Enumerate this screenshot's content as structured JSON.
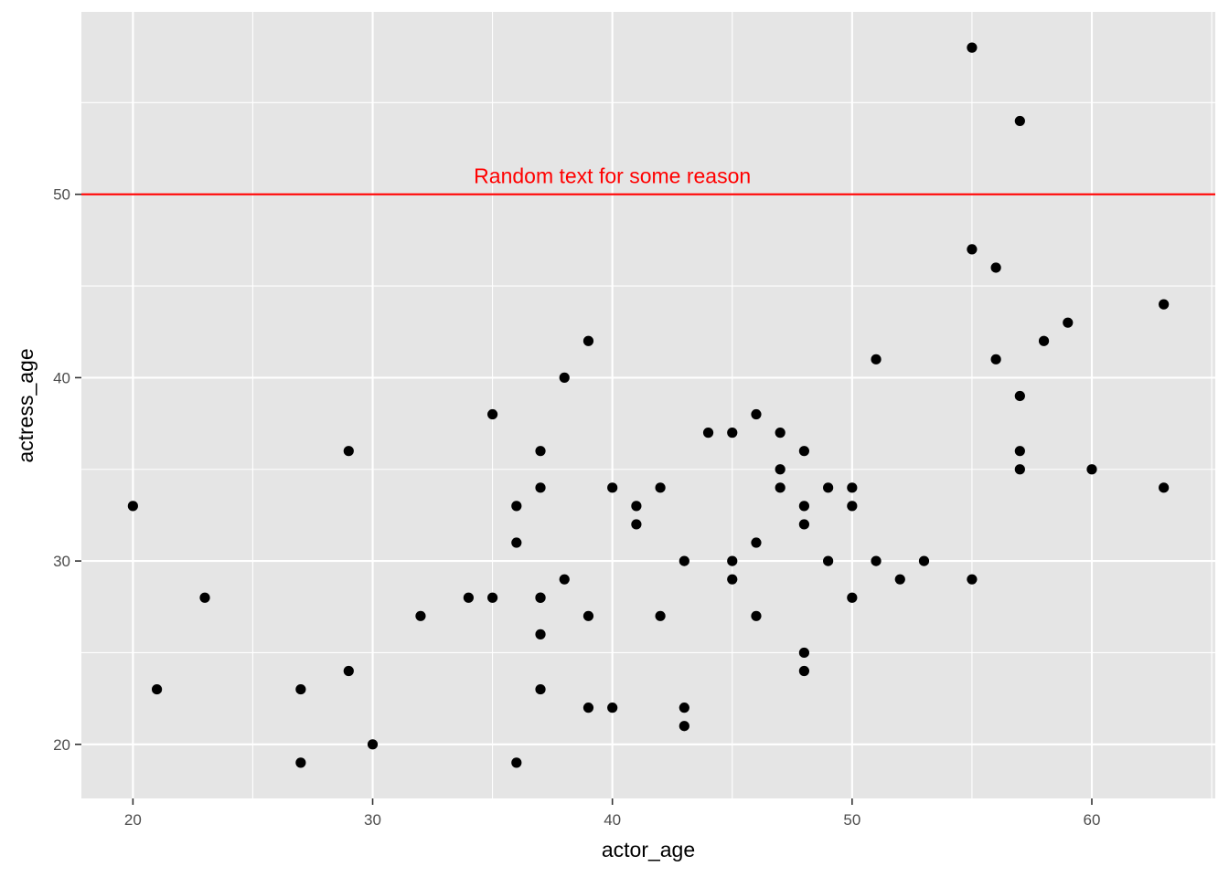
{
  "chart_data": {
    "type": "scatter",
    "title": "",
    "xlabel": "actor_age",
    "ylabel": "actress_age",
    "xlim": [
      17.85,
      65.15
    ],
    "ylim": [
      17.05,
      59.95
    ],
    "x_major_ticks": [
      20,
      30,
      40,
      50,
      60
    ],
    "x_minor_ticks": [
      25,
      35,
      45,
      55,
      65
    ],
    "y_major_ticks": [
      20,
      30,
      40,
      50
    ],
    "y_minor_ticks": [
      25,
      35,
      45,
      55
    ],
    "grid": true,
    "panel_color": "#e5e5e5",
    "point_color": "#000000",
    "hline": {
      "y": 50,
      "color": "#ff0000"
    },
    "annotation": {
      "text": "Random text for some reason",
      "x": 40,
      "y": 51,
      "color": "#ff0000"
    },
    "points": [
      [
        20,
        33
      ],
      [
        21,
        23
      ],
      [
        23,
        28
      ],
      [
        27,
        23
      ],
      [
        27,
        19
      ],
      [
        29,
        36
      ],
      [
        29,
        24
      ],
      [
        30,
        20
      ],
      [
        32,
        27
      ],
      [
        34,
        28
      ],
      [
        35,
        38
      ],
      [
        35,
        28
      ],
      [
        36,
        33
      ],
      [
        36,
        31
      ],
      [
        36,
        19
      ],
      [
        37,
        36
      ],
      [
        37,
        34
      ],
      [
        37,
        28
      ],
      [
        37,
        28
      ],
      [
        37,
        26
      ],
      [
        37,
        23
      ],
      [
        38,
        40
      ],
      [
        38,
        29
      ],
      [
        39,
        42
      ],
      [
        39,
        27
      ],
      [
        39,
        22
      ],
      [
        40,
        34
      ],
      [
        40,
        22
      ],
      [
        41,
        33
      ],
      [
        41,
        32
      ],
      [
        42,
        34
      ],
      [
        42,
        27
      ],
      [
        43,
        30
      ],
      [
        43,
        22
      ],
      [
        43,
        21
      ],
      [
        44,
        37
      ],
      [
        45,
        37
      ],
      [
        45,
        30
      ],
      [
        45,
        29
      ],
      [
        46,
        38
      ],
      [
        46,
        31
      ],
      [
        46,
        27
      ],
      [
        47,
        37
      ],
      [
        47,
        35
      ],
      [
        47,
        34
      ],
      [
        48,
        36
      ],
      [
        48,
        33
      ],
      [
        48,
        32
      ],
      [
        48,
        25
      ],
      [
        48,
        24
      ],
      [
        49,
        34
      ],
      [
        49,
        30
      ],
      [
        50,
        34
      ],
      [
        50,
        33
      ],
      [
        50,
        28
      ],
      [
        51,
        41
      ],
      [
        51,
        30
      ],
      [
        52,
        29
      ],
      [
        53,
        30
      ],
      [
        55,
        58
      ],
      [
        55,
        47
      ],
      [
        55,
        29
      ],
      [
        56,
        46
      ],
      [
        56,
        41
      ],
      [
        57,
        54
      ],
      [
        57,
        39
      ],
      [
        57,
        36
      ],
      [
        57,
        35
      ],
      [
        58,
        42
      ],
      [
        59,
        43
      ],
      [
        60,
        35
      ],
      [
        63,
        44
      ],
      [
        63,
        34
      ]
    ]
  }
}
